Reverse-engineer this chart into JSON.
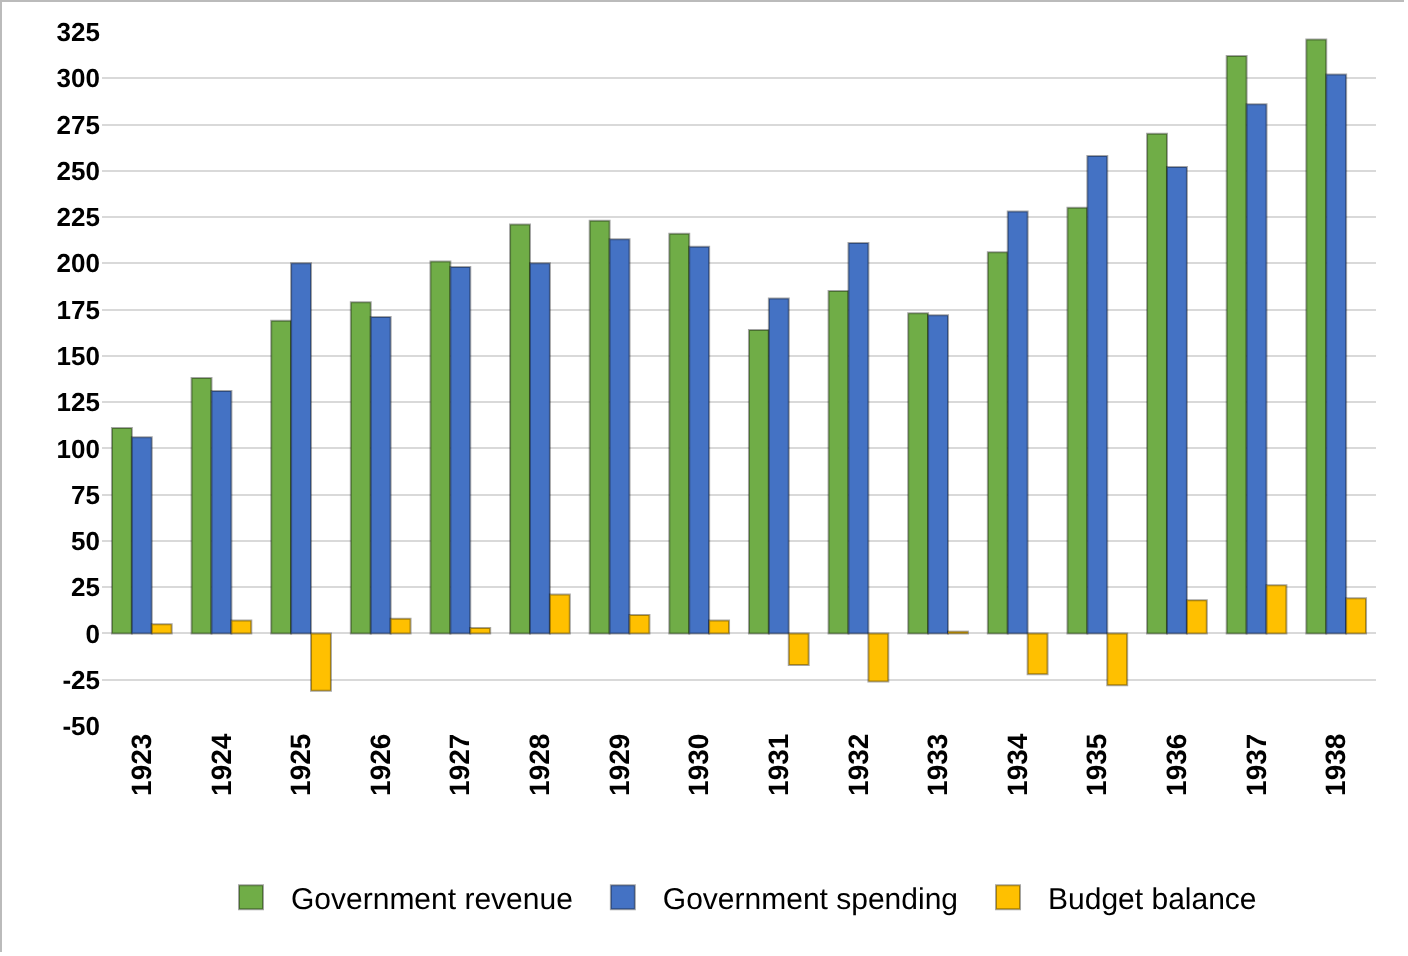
{
  "chart_data": {
    "type": "bar",
    "categories": [
      "1923",
      "1924",
      "1925",
      "1926",
      "1927",
      "1928",
      "1929",
      "1930",
      "1931",
      "1932",
      "1933",
      "1934",
      "1935",
      "1936",
      "1937",
      "1938"
    ],
    "series": [
      {
        "name": "Government revenue",
        "color": "#70ad47",
        "values": [
          111,
          138,
          169,
          179,
          201,
          221,
          223,
          216,
          164,
          185,
          173,
          206,
          230,
          270,
          312,
          321
        ]
      },
      {
        "name": "Government spending",
        "color": "#4472c4",
        "values": [
          106,
          131,
          200,
          171,
          198,
          200,
          213,
          209,
          181,
          211,
          172,
          228,
          258,
          252,
          286,
          302
        ]
      },
      {
        "name": "Budget balance",
        "color": "#ffc000",
        "values": [
          5,
          7,
          -31,
          8,
          3,
          21,
          10,
          7,
          -17,
          -26,
          1,
          -22,
          -28,
          18,
          26,
          19
        ]
      }
    ],
    "ylim": [
      -50,
      325
    ],
    "yticks": [
      -50,
      -25,
      0,
      25,
      50,
      75,
      100,
      125,
      150,
      175,
      200,
      225,
      250,
      275,
      300,
      325
    ],
    "grid": "y",
    "legend": "bottom"
  }
}
